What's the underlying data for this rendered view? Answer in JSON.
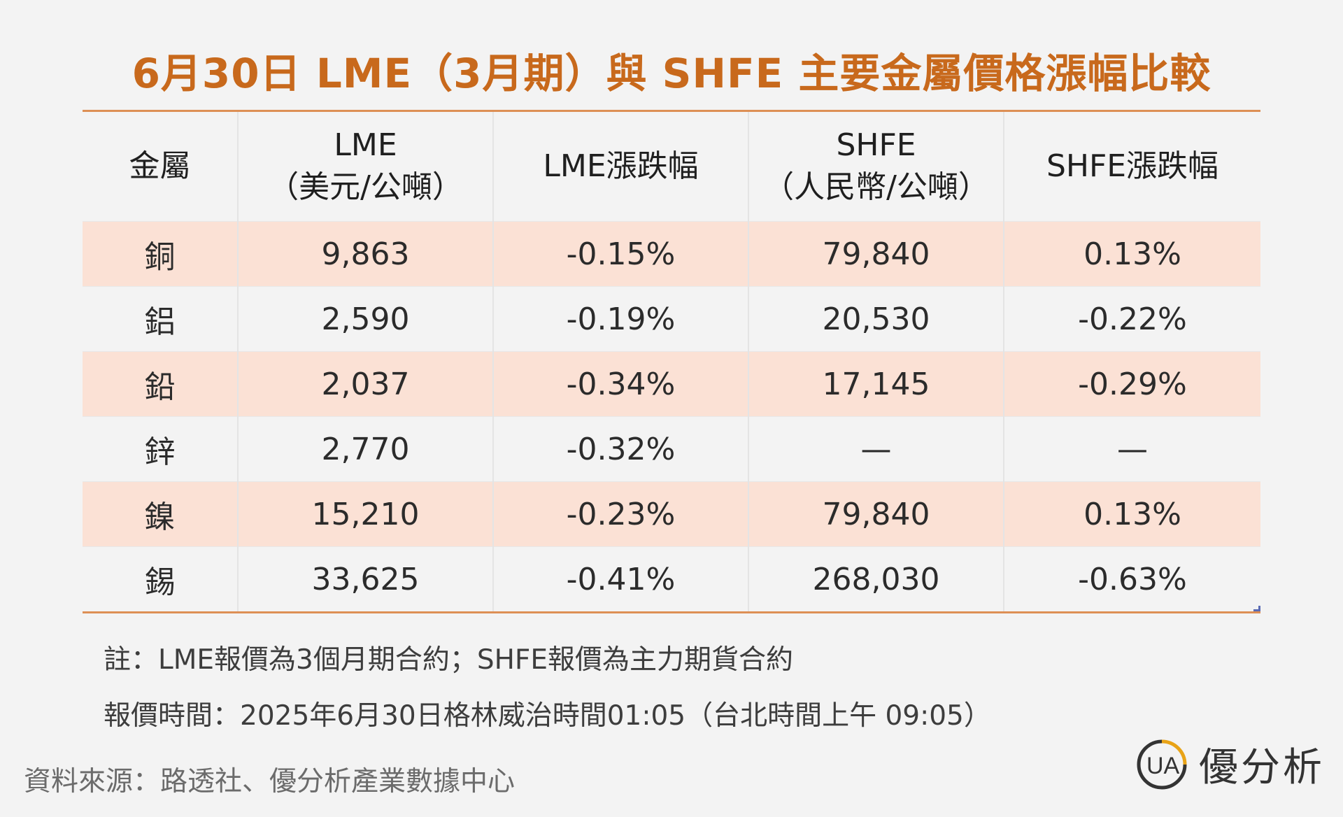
{
  "title": "6月30日 LME（3月期）與 SHFE 主要金屬價格漲幅比較",
  "table": {
    "headers": [
      {
        "line1": "金屬",
        "line2": ""
      },
      {
        "line1": "LME",
        "line2": "（美元/公噸）"
      },
      {
        "line1": "LME漲跌幅",
        "line2": ""
      },
      {
        "line1": "SHFE",
        "line2": "（人民幣/公噸）"
      },
      {
        "line1": "SHFE漲跌幅",
        "line2": ""
      }
    ],
    "rows": [
      {
        "metal": "銅",
        "lme": "9,863",
        "lme_change": "-0.15%",
        "shfe": "79,840",
        "shfe_change": "0.13%"
      },
      {
        "metal": "鋁",
        "lme": "2,590",
        "lme_change": "-0.19%",
        "shfe": "20,530",
        "shfe_change": "-0.22%"
      },
      {
        "metal": "鉛",
        "lme": "2,037",
        "lme_change": "-0.34%",
        "shfe": "17,145",
        "shfe_change": "-0.29%"
      },
      {
        "metal": "鋅",
        "lme": "2,770",
        "lme_change": "-0.32%",
        "shfe": "—",
        "shfe_change": "—"
      },
      {
        "metal": "鎳",
        "lme": "15,210",
        "lme_change": "-0.23%",
        "shfe": "79,840",
        "shfe_change": "0.13%"
      },
      {
        "metal": "錫",
        "lme": "33,625",
        "lme_change": "-0.41%",
        "shfe": "268,030",
        "shfe_change": "-0.63%"
      }
    ]
  },
  "notes": {
    "note1": "註：LME報價為3個月期合約；SHFE報價為主力期貨合約",
    "note2": "報價時間：2025年6月30日格林威治時間01:05（台北時間上午 09:05）"
  },
  "source": "資料來源：路透社、優分析產業數據中心",
  "logo": {
    "text": "優分析",
    "icon": "ua-logo-icon",
    "mark": "UA"
  },
  "colors": {
    "title": "#c8691c",
    "rule": "#dd8f55",
    "row_shade": "#fbe1d5",
    "logo_ring": "#e8a317"
  }
}
